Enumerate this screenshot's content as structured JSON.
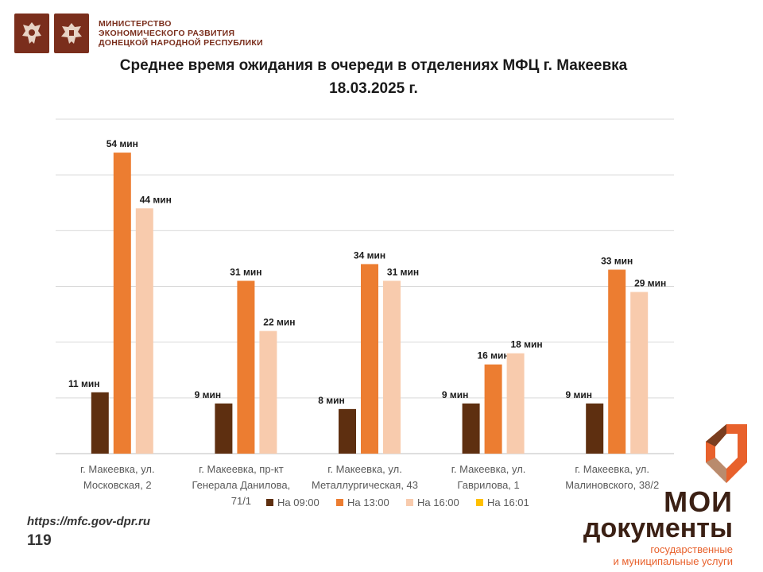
{
  "header": {
    "ministry_lines": [
      "МИНИСТЕРСТВО",
      "ЭКОНОМИЧЕСКОГО РАЗВИТИЯ",
      "ДОНЕЦКОЙ НАРОДНОЙ РЕСПУБЛИКИ"
    ],
    "brand_color": "#7a2e1c"
  },
  "chart_data": {
    "type": "bar",
    "title": "Среднее время ожидания в очереди в отделениях МФЦ г. Макеевка",
    "subtitle": "18.03.2025 г.",
    "categories": [
      [
        "г. Макеевка, ул.",
        "Московская, 2"
      ],
      [
        "г. Макеевка, пр-кт",
        "Генерала Данилова,",
        "71/1"
      ],
      [
        "г. Макеевка, ул.",
        "Металлургическая, 43"
      ],
      [
        "г. Макеевка, ул.",
        "Гаврилова, 1"
      ],
      [
        "г. Макеевка, ул.",
        "Малиновского, 38/2"
      ]
    ],
    "series": [
      {
        "name": "На 09:00",
        "color": "#5e2f10",
        "values": [
          11,
          9,
          8,
          9,
          9
        ]
      },
      {
        "name": "На 13:00",
        "color": "#ec7d31",
        "values": [
          54,
          31,
          34,
          16,
          33
        ]
      },
      {
        "name": "На 16:00",
        "color": "#f8cbad",
        "values": [
          44,
          22,
          31,
          18,
          29
        ]
      },
      {
        "name": "На 16:01",
        "color": "#ffc000",
        "values": [
          null,
          null,
          null,
          null,
          null
        ]
      }
    ],
    "value_suffix": " мин",
    "ylim": [
      0,
      60
    ],
    "grid": true,
    "legend": "bottom"
  },
  "footer": {
    "url": "https://mfc.gov-dpr.ru",
    "page_number": "119"
  },
  "brand": {
    "line1": "МОИ",
    "line2": "документы",
    "line3": "государственные",
    "line4": "и муниципальные услуги",
    "accent": "#e8612c",
    "dark": "#3b2014"
  }
}
